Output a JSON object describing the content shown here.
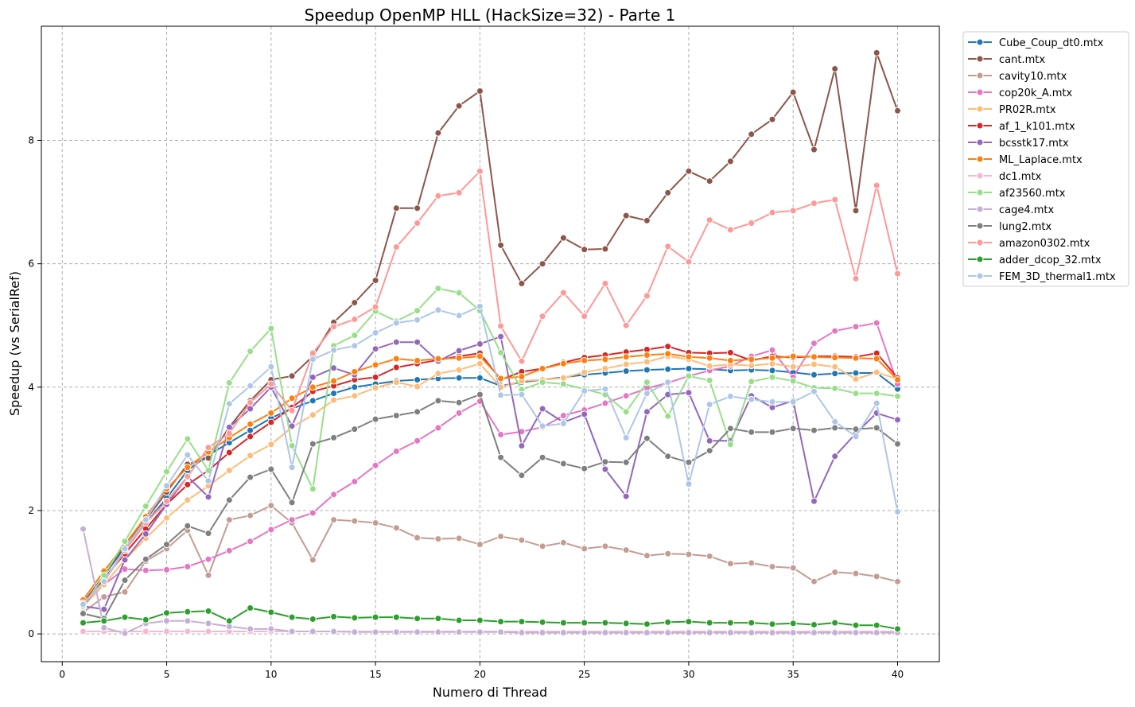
{
  "chart_data": {
    "type": "line",
    "title": "Speedup OpenMP HLL (HackSize=32) - Parte 1",
    "xlabel": "Numero di Thread",
    "ylabel": "Speedup (vs SerialRef)",
    "xlim": [
      -1,
      42
    ],
    "ylim": [
      -0.45,
      9.85
    ],
    "xticks": [
      0,
      5,
      10,
      15,
      20,
      25,
      30,
      35,
      40
    ],
    "yticks": [
      0,
      2,
      4,
      6,
      8
    ],
    "grid": true,
    "legend_position": "outside-top-right",
    "x": [
      1,
      2,
      3,
      4,
      5,
      6,
      7,
      8,
      9,
      10,
      11,
      12,
      13,
      14,
      15,
      16,
      17,
      18,
      19,
      20,
      21,
      22,
      23,
      24,
      25,
      26,
      27,
      28,
      29,
      30,
      31,
      32,
      33,
      34,
      35,
      36,
      37,
      38,
      39,
      40
    ],
    "series": [
      {
        "name": "Cube_Coup_dt0.mtx",
        "color": "#1f77b4",
        "values": [
          0.5,
          0.95,
          1.4,
          1.8,
          2.2,
          2.65,
          2.9,
          3.1,
          3.3,
          3.5,
          3.65,
          3.78,
          3.9,
          4.0,
          4.05,
          4.1,
          4.12,
          4.14,
          4.15,
          4.15,
          4.02,
          4.08,
          4.12,
          4.16,
          4.2,
          4.23,
          4.26,
          4.28,
          4.29,
          4.3,
          4.29,
          4.27,
          4.28,
          4.27,
          4.24,
          4.2,
          4.22,
          4.23,
          4.23,
          3.97
        ]
      },
      {
        "name": "cant.mtx",
        "color": "#8c564b",
        "values": [
          0.5,
          0.95,
          1.45,
          1.85,
          2.3,
          2.75,
          2.85,
          3.35,
          3.78,
          4.12,
          4.18,
          4.5,
          5.05,
          5.37,
          5.73,
          6.9,
          6.9,
          8.12,
          8.56,
          8.8,
          6.3,
          5.68,
          6.0,
          6.42,
          6.23,
          6.24,
          6.78,
          6.7,
          7.15,
          7.5,
          7.34,
          7.66,
          8.1,
          8.34,
          8.78,
          7.85,
          9.16,
          6.86,
          9.42,
          8.48
        ]
      },
      {
        "name": "cavity10.mtx",
        "color": "#c49c94",
        "values": [
          0.35,
          0.6,
          0.68,
          1.18,
          1.38,
          1.68,
          0.95,
          1.85,
          1.92,
          2.08,
          1.8,
          1.2,
          1.85,
          1.83,
          1.8,
          1.72,
          1.56,
          1.54,
          1.55,
          1.45,
          1.58,
          1.52,
          1.42,
          1.48,
          1.38,
          1.42,
          1.36,
          1.27,
          1.3,
          1.29,
          1.26,
          1.14,
          1.15,
          1.09,
          1.07,
          0.85,
          1.0,
          0.98,
          0.93,
          0.85
        ]
      },
      {
        "name": "cop20k_A.mtx",
        "color": "#e377c2",
        "values": [
          0.45,
          0.8,
          1.05,
          1.03,
          1.04,
          1.09,
          1.21,
          1.35,
          1.5,
          1.69,
          1.85,
          1.96,
          2.26,
          2.47,
          2.73,
          2.96,
          3.13,
          3.34,
          3.58,
          3.77,
          3.23,
          3.28,
          3.35,
          3.54,
          3.63,
          3.74,
          3.86,
          3.98,
          4.07,
          4.18,
          4.27,
          4.34,
          4.5,
          4.6,
          4.16,
          4.71,
          4.91,
          4.98,
          5.04,
          4.05
        ]
      },
      {
        "name": "PR02R.mtx",
        "color": "#ffbb78",
        "values": [
          0.45,
          0.8,
          1.2,
          1.55,
          1.88,
          2.17,
          2.4,
          2.65,
          2.89,
          3.07,
          3.35,
          3.55,
          3.79,
          3.86,
          3.99,
          4.08,
          4.01,
          4.22,
          4.28,
          4.38,
          4.0,
          4.1,
          4.12,
          4.15,
          4.24,
          4.3,
          4.37,
          4.41,
          4.5,
          4.45,
          4.34,
          4.37,
          4.35,
          4.38,
          4.33,
          4.37,
          4.33,
          4.13,
          4.24,
          4.13
        ]
      },
      {
        "name": "af_1_k101.mtx",
        "color": "#d62728",
        "values": [
          0.45,
          0.9,
          1.3,
          1.7,
          2.1,
          2.42,
          2.65,
          2.94,
          3.2,
          3.43,
          3.67,
          3.93,
          4.02,
          4.12,
          4.16,
          4.32,
          4.38,
          4.44,
          4.5,
          4.55,
          4.12,
          4.25,
          4.3,
          4.4,
          4.48,
          4.52,
          4.57,
          4.61,
          4.66,
          4.56,
          4.55,
          4.56,
          4.43,
          4.5,
          4.48,
          4.5,
          4.5,
          4.49,
          4.55,
          4.15
        ]
      },
      {
        "name": "bcsstk17.mtx",
        "color": "#9467bd",
        "values": [
          0.45,
          0.4,
          1.2,
          1.62,
          2.1,
          2.55,
          2.22,
          3.35,
          3.65,
          4.0,
          3.37,
          4.16,
          4.31,
          4.2,
          4.62,
          4.73,
          4.73,
          4.42,
          4.59,
          4.7,
          4.82,
          3.05,
          3.65,
          3.43,
          3.56,
          2.67,
          2.23,
          3.6,
          3.88,
          3.91,
          3.13,
          3.13,
          3.86,
          3.67,
          3.78,
          2.15,
          2.88,
          3.25,
          3.58,
          3.47
        ]
      },
      {
        "name": "ML_Laplace.mtx",
        "color": "#ff7f0e",
        "values": [
          0.55,
          1.02,
          1.45,
          1.9,
          2.35,
          2.7,
          2.95,
          3.18,
          3.4,
          3.58,
          3.82,
          4.0,
          4.1,
          4.25,
          4.36,
          4.46,
          4.43,
          4.46,
          4.47,
          4.5,
          4.14,
          4.17,
          4.3,
          4.38,
          4.43,
          4.45,
          4.49,
          4.52,
          4.54,
          4.49,
          4.47,
          4.43,
          4.45,
          4.47,
          4.5,
          4.49,
          4.48,
          4.47,
          4.46,
          4.12
        ]
      },
      {
        "name": "dc1.mtx",
        "color": "#f7b6d2",
        "values": [
          0.04,
          0.04,
          0.04,
          0.04,
          0.04,
          0.04,
          0.04,
          0.04,
          0.04,
          0.04,
          0.04,
          0.04,
          0.04,
          0.04,
          0.04,
          0.04,
          0.04,
          0.04,
          0.04,
          0.04,
          0.04,
          0.04,
          0.04,
          0.04,
          0.04,
          0.04,
          0.04,
          0.04,
          0.04,
          0.04,
          0.04,
          0.04,
          0.04,
          0.04,
          0.04,
          0.04,
          0.04,
          0.04,
          0.04,
          0.04
        ]
      },
      {
        "name": "af23560.mtx",
        "color": "#98df8a",
        "values": [
          0.45,
          0.95,
          1.5,
          2.07,
          2.63,
          3.16,
          2.65,
          4.07,
          4.58,
          4.95,
          3.05,
          2.35,
          4.67,
          4.84,
          5.23,
          5.07,
          5.24,
          5.6,
          5.53,
          5.24,
          4.56,
          3.96,
          4.08,
          4.05,
          3.97,
          3.88,
          3.6,
          4.08,
          3.53,
          4.18,
          4.11,
          3.07,
          4.09,
          4.16,
          4.1,
          3.99,
          3.98,
          3.9,
          3.9,
          3.85
        ]
      },
      {
        "name": "cage4.mtx",
        "color": "#c5b0d5",
        "values": [
          1.7,
          0.1,
          0.01,
          0.17,
          0.21,
          0.21,
          0.17,
          0.12,
          0.08,
          0.08,
          0.04,
          0.04,
          0.04,
          0.03,
          0.03,
          0.03,
          0.03,
          0.03,
          0.03,
          0.03,
          0.03,
          0.02,
          0.02,
          0.02,
          0.02,
          0.02,
          0.02,
          0.02,
          0.02,
          0.02,
          0.02,
          0.02,
          0.02,
          0.02,
          0.02,
          0.02,
          0.02,
          0.02,
          0.02,
          0.02
        ]
      },
      {
        "name": "lung2.mtx",
        "color": "#7f7f7f",
        "values": [
          0.33,
          0.25,
          0.87,
          1.21,
          1.45,
          1.75,
          1.63,
          2.17,
          2.54,
          2.67,
          2.13,
          3.08,
          3.18,
          3.32,
          3.48,
          3.54,
          3.6,
          3.78,
          3.75,
          3.88,
          2.86,
          2.57,
          2.86,
          2.76,
          2.68,
          2.79,
          2.78,
          3.17,
          2.88,
          2.78,
          2.97,
          3.33,
          3.27,
          3.27,
          3.33,
          3.3,
          3.34,
          3.32,
          3.34,
          3.08
        ]
      },
      {
        "name": "amazon0302.mtx",
        "color": "#ff9896",
        "values": [
          0.5,
          0.85,
          1.35,
          1.8,
          2.15,
          2.55,
          3.02,
          3.25,
          3.75,
          4.05,
          3.62,
          4.55,
          4.98,
          5.1,
          5.3,
          6.27,
          6.66,
          7.1,
          7.15,
          7.5,
          4.99,
          4.42,
          5.15,
          5.53,
          5.15,
          5.68,
          5.0,
          5.48,
          6.28,
          6.03,
          6.71,
          6.55,
          6.66,
          6.83,
          6.86,
          6.98,
          7.04,
          5.76,
          7.27,
          5.84
        ]
      },
      {
        "name": "adder_dcop_32.mtx",
        "color": "#2ca02c",
        "values": [
          0.18,
          0.21,
          0.27,
          0.23,
          0.34,
          0.36,
          0.37,
          0.21,
          0.42,
          0.35,
          0.27,
          0.24,
          0.28,
          0.26,
          0.27,
          0.27,
          0.25,
          0.25,
          0.22,
          0.22,
          0.2,
          0.2,
          0.19,
          0.18,
          0.18,
          0.18,
          0.17,
          0.16,
          0.19,
          0.2,
          0.18,
          0.18,
          0.18,
          0.16,
          0.17,
          0.15,
          0.18,
          0.14,
          0.14,
          0.08
        ]
      },
      {
        "name": "FEM_3D_thermal1.mtx",
        "color": "#aec7e8",
        "values": [
          0.48,
          0.85,
          1.38,
          1.85,
          2.4,
          2.9,
          2.48,
          3.73,
          4.02,
          4.33,
          2.7,
          4.45,
          4.6,
          4.67,
          4.88,
          5.04,
          5.09,
          5.25,
          5.16,
          5.31,
          3.87,
          3.88,
          3.37,
          3.41,
          3.94,
          3.97,
          3.18,
          3.9,
          4.08,
          2.43,
          3.72,
          3.85,
          3.8,
          3.76,
          3.76,
          3.93,
          3.44,
          3.2,
          3.74,
          1.98
        ]
      }
    ]
  }
}
